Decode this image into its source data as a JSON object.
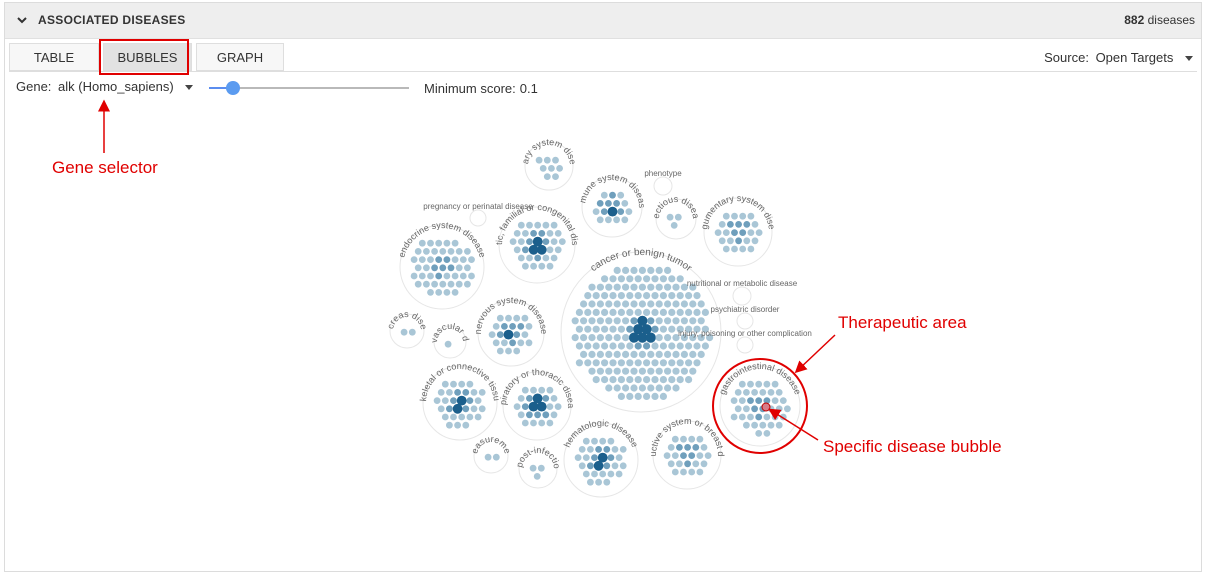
{
  "header": {
    "title": "ASSOCIATED DISEASES",
    "count": "882",
    "count_suffix": "diseases"
  },
  "tabs": [
    {
      "label": "TABLE",
      "active": false
    },
    {
      "label": "BUBBLES",
      "active": true
    },
    {
      "label": "GRAPH",
      "active": false
    }
  ],
  "source": {
    "label": "Source:",
    "value": "Open Targets"
  },
  "gene": {
    "label": "Gene:",
    "value": "alk (Homo_sapiens)"
  },
  "min_score": {
    "label": "Minimum score:",
    "value": "0.1",
    "slider_fraction": 0.12
  },
  "bubble_labels": [
    "urinary system disease",
    "immune system disease",
    "infectious disease",
    "integumentary system disease",
    "genetic, familial or congenital disease",
    "endocrine system disease",
    "cancer or benign tumor",
    "nervous system disease",
    "pancreas disease",
    "cardiovascular disease",
    "musculoskeletal or connective tissue disease",
    "respiratory or thoracic disease",
    "gastrointestinal disease",
    "measurement",
    "disease or post-infectious disease",
    "hematologic disease",
    "reproductive system or breast disease",
    "phenotype",
    "nutritional or metabolic disease",
    "psychiatric disorder",
    "injury, poisoning or other complication",
    "pregnancy or perinatal disease"
  ],
  "annotations": {
    "gene_selector": "Gene selector",
    "therapeutic_area": "Therapeutic area",
    "specific_bubble": "Specific disease bubble"
  },
  "colors": {
    "annotation_red": "#e00000",
    "bubble_light": "#a9c6d6",
    "bubble_mid": "#6f9fbc",
    "bubble_dark": "#1b5f8c",
    "slider_blue": "#5b9bf0"
  }
}
